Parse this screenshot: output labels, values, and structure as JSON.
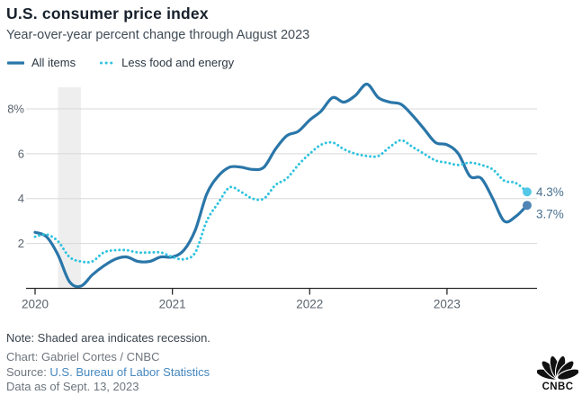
{
  "header": {
    "title": "U.S. consumer price index",
    "subtitle": "Year-over-year percent change through August 2023"
  },
  "legend": [
    {
      "label": "All items",
      "style": "solid",
      "color": "#2a76a9"
    },
    {
      "label": "Less food and energy",
      "style": "dotted",
      "color": "#2fc3de"
    }
  ],
  "chart_data": {
    "type": "line",
    "x_unit": "month",
    "x_start": "2020-01",
    "x_end": "2023-08",
    "x_tick_labels": [
      "2020",
      "2021",
      "2022",
      "2023"
    ],
    "y_ticks": [
      8,
      6,
      4,
      2
    ],
    "y_tick_labels": [
      "8%",
      "6",
      "4",
      "2"
    ],
    "ylim": [
      0,
      9.35
    ],
    "grid": true,
    "recession_band": {
      "start_month_index": 2,
      "end_month_index": 4,
      "color": "#eeeeee"
    },
    "series": [
      {
        "name": "All items",
        "style": "solid",
        "color": "#2a76a9",
        "dot_color": "#4f84b4",
        "end_label": "3.7%",
        "values": [
          2.5,
          2.3,
          1.5,
          0.3,
          0.1,
          0.6,
          1.0,
          1.3,
          1.4,
          1.2,
          1.2,
          1.4,
          1.4,
          1.7,
          2.6,
          4.2,
          5.0,
          5.4,
          5.4,
          5.3,
          5.4,
          6.2,
          6.8,
          7.0,
          7.5,
          7.9,
          8.5,
          8.3,
          8.6,
          9.1,
          8.5,
          8.3,
          8.2,
          7.7,
          7.1,
          6.5,
          6.4,
          6.0,
          5.0,
          4.9,
          4.0,
          3.0,
          3.2,
          3.7
        ]
      },
      {
        "name": "Less food and energy",
        "style": "dotted",
        "color": "#2fc3de",
        "dot_color": "#55c8e8",
        "end_label": "4.3%",
        "values": [
          2.3,
          2.4,
          2.1,
          1.4,
          1.2,
          1.2,
          1.6,
          1.7,
          1.7,
          1.6,
          1.6,
          1.6,
          1.4,
          1.3,
          1.6,
          3.0,
          3.8,
          4.5,
          4.3,
          4.0,
          4.0,
          4.6,
          4.9,
          5.5,
          6.0,
          6.4,
          6.5,
          6.2,
          6.0,
          5.9,
          5.9,
          6.3,
          6.6,
          6.3,
          6.0,
          5.7,
          5.6,
          5.5,
          5.6,
          5.5,
          5.3,
          4.8,
          4.7,
          4.3
        ]
      }
    ],
    "end_label_color": "#47708f",
    "gridline_color": "#d8d8d8",
    "axis_line_color": "#2b2b2b",
    "tick_label_color": "#5a636d"
  },
  "footer": {
    "note": "Note: Shaded area indicates recession.",
    "credit": "Chart: Gabriel Cortes / CNBC",
    "source_label": "Source: ",
    "source_link": "U.S. Bureau of Labor Statistics",
    "data_as_of": "Data as of Sept. 13, 2023",
    "logo_text": "CNBC"
  }
}
